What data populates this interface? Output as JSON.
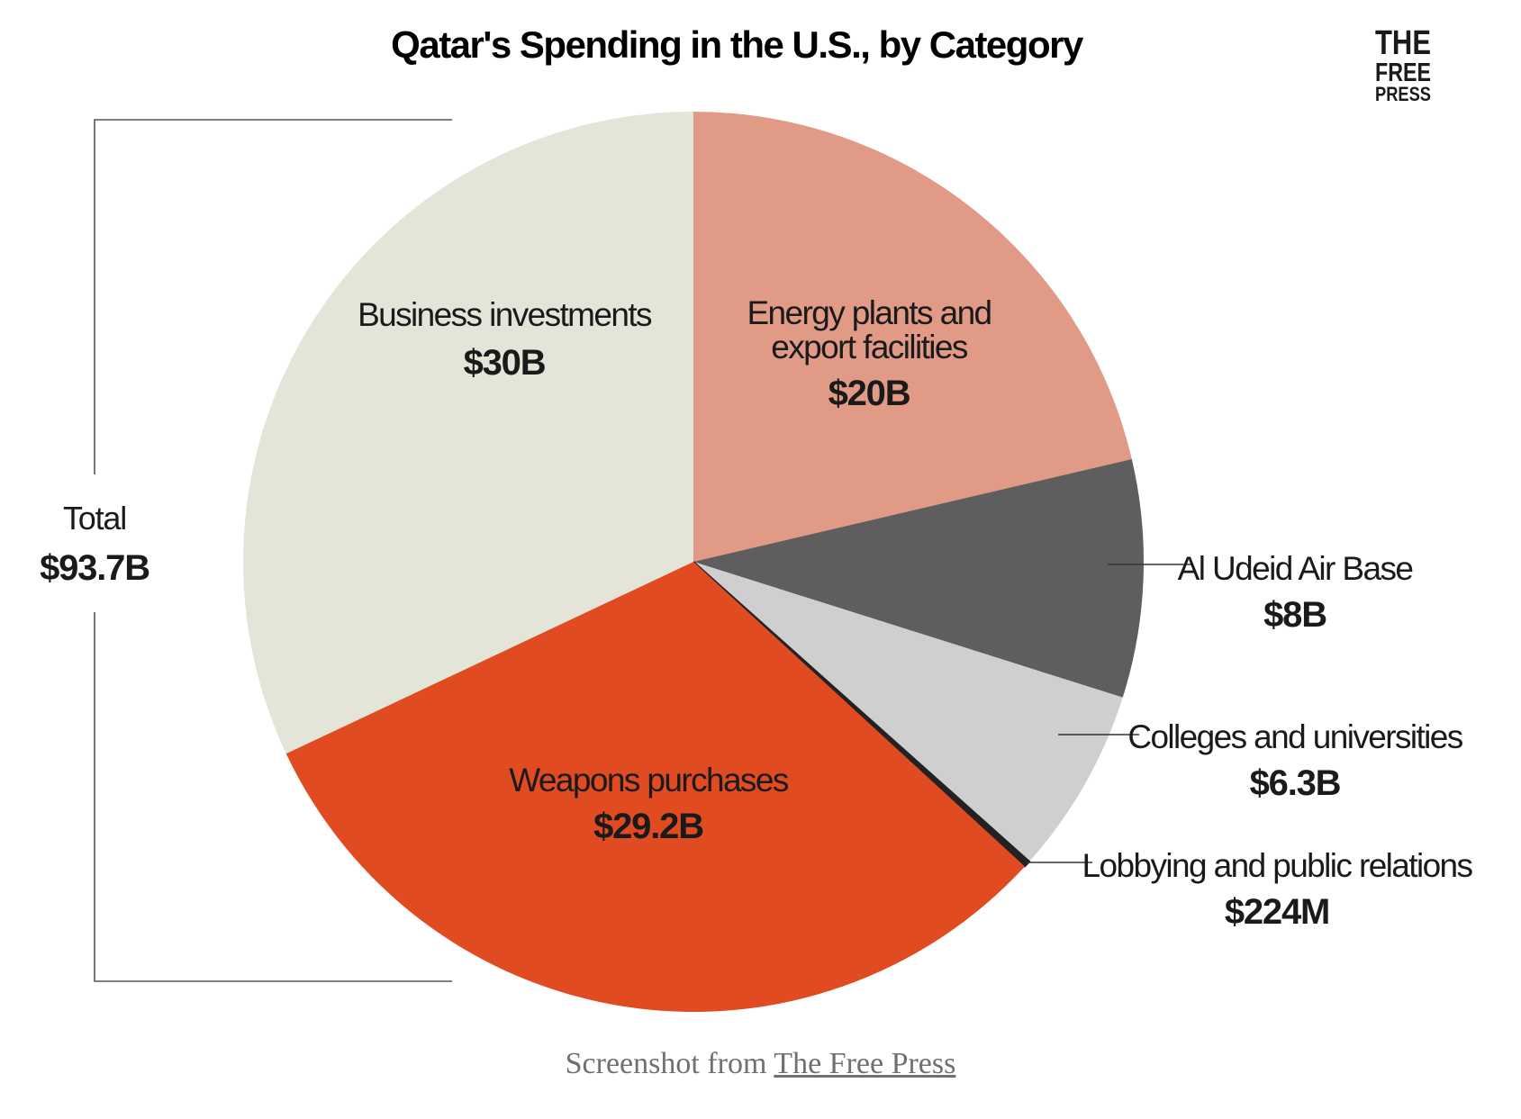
{
  "chart_data": {
    "type": "pie",
    "title": "Qatar's Spending in the U.S., by Category",
    "total": {
      "label": "Total",
      "value_label": "$93.7B"
    },
    "slices": [
      {
        "name": "Energy plants and export facilities",
        "label_lines": [
          "Energy plants and",
          "export facilities"
        ],
        "value": 20,
        "value_label": "$20B",
        "color": "#e09a86"
      },
      {
        "name": "Al Udeid Air Base",
        "label_lines": [
          "Al Udeid Air Base"
        ],
        "value": 8,
        "value_label": "$8B",
        "color": "#5e5e5e"
      },
      {
        "name": "Colleges and universities",
        "label_lines": [
          "Colleges and universities"
        ],
        "value": 6.3,
        "value_label": "$6.3B",
        "color": "#cfcfcf"
      },
      {
        "name": "Lobbying and public relations",
        "label_lines": [
          "Lobbying and public relations"
        ],
        "value": 0.224,
        "value_label": "$224M",
        "color": "#222222"
      },
      {
        "name": "Weapons purchases",
        "label_lines": [
          "Weapons purchases"
        ],
        "value": 29.2,
        "value_label": "$29.2B",
        "color": "#e04b22"
      },
      {
        "name": "Business investments",
        "label_lines": [
          "Business investments"
        ],
        "value": 30,
        "value_label": "$30B",
        "color": "#e5e4d9"
      }
    ]
  },
  "branding": {
    "logo_lines": [
      "THE",
      "FREE",
      "PRESS"
    ]
  },
  "caption": {
    "prefix": "Screenshot from ",
    "link_text": "The Free Press"
  }
}
